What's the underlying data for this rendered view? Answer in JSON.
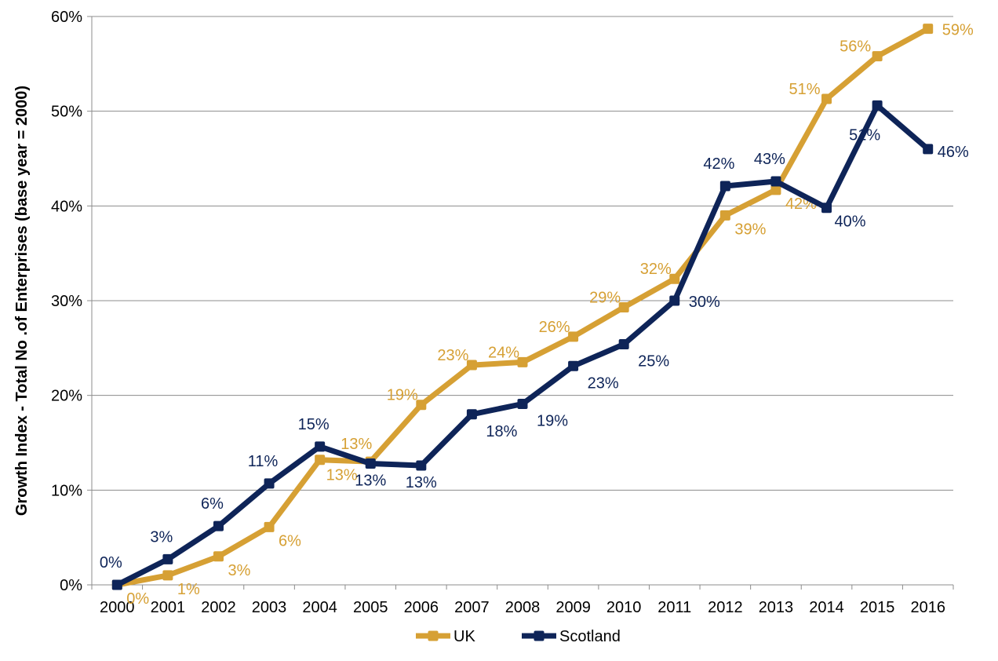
{
  "chart_data": {
    "type": "line",
    "title": "",
    "xlabel": "",
    "ylabel": "Growth Index - Total No .of Enterprises (base year = 2000)",
    "ylim": [
      0,
      60
    ],
    "y_ticks": [
      "0%",
      "10%",
      "20%",
      "30%",
      "40%",
      "50%",
      "60%"
    ],
    "y_tick_values": [
      0,
      10,
      20,
      30,
      40,
      50,
      60
    ],
    "categories": [
      "2000",
      "2001",
      "2002",
      "2003",
      "2004",
      "2005",
      "2006",
      "2007",
      "2008",
      "2009",
      "2010",
      "2011",
      "2012",
      "2013",
      "2014",
      "2015",
      "2016"
    ],
    "grid": "horizontal",
    "legend": "bottom",
    "series": [
      {
        "name": "UK",
        "color": "#D6A034",
        "values": [
          0,
          1.0,
          3.0,
          6.1,
          13.2,
          13.0,
          19.0,
          23.2,
          23.5,
          26.2,
          29.3,
          32.3,
          39.0,
          41.7,
          51.3,
          55.8,
          58.7
        ],
        "labels": [
          "0%",
          "1%",
          "3%",
          "6%",
          "13%",
          "13%",
          "19%",
          "23%",
          "24%",
          "26%",
          "29%",
          "32%",
          "39%",
          "42%",
          "51%",
          "56%",
          "59%"
        ]
      },
      {
        "name": "Scotland",
        "color": "#0E2458",
        "values": [
          0,
          2.7,
          6.2,
          10.7,
          14.6,
          12.8,
          12.6,
          18.0,
          19.1,
          23.1,
          25.4,
          30.0,
          42.1,
          42.6,
          39.8,
          50.6,
          46.0
        ],
        "labels": [
          "0%",
          "3%",
          "6%",
          "11%",
          "15%",
          "13%",
          "13%",
          "18%",
          "19%",
          "23%",
          "25%",
          "30%",
          "42%",
          "43%",
          "40%",
          "51%",
          "46%"
        ]
      }
    ]
  }
}
